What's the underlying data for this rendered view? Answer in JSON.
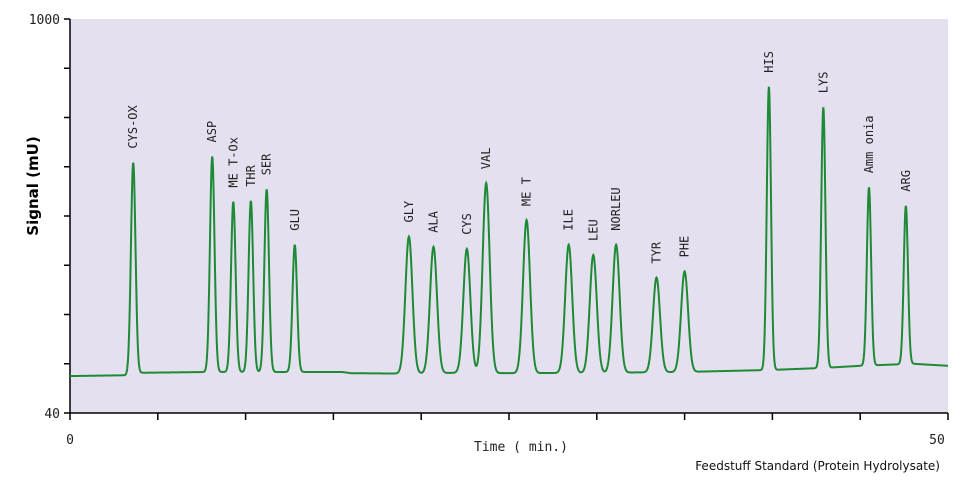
{
  "chart_data": {
    "type": "line",
    "title": "",
    "caption": "Feedstuff Standard (Protein Hydrolysate)",
    "xlabel": "Time ( min.)",
    "ylabel": "Signal (mU)",
    "xlim": [
      0,
      50
    ],
    "ylim": [
      40,
      1000
    ],
    "x_tick_labels": [
      "0",
      "50"
    ],
    "y_tick_labels": [
      "40",
      "1000"
    ],
    "grid": false,
    "background_color": "#e4e0ef",
    "line_color": "#1e8a35",
    "baseline": [
      [
        0,
        130
      ],
      [
        3.2,
        132
      ],
      [
        4.0,
        138
      ],
      [
        8,
        140
      ],
      [
        10,
        140
      ],
      [
        15.5,
        140
      ],
      [
        16,
        137
      ],
      [
        19,
        136
      ],
      [
        22,
        138
      ],
      [
        25,
        137
      ],
      [
        30,
        138
      ],
      [
        35,
        140
      ],
      [
        38,
        143
      ],
      [
        40,
        145
      ],
      [
        43,
        150
      ],
      [
        45,
        155
      ],
      [
        48,
        160
      ],
      [
        50,
        155
      ]
    ],
    "peaks": [
      {
        "name": "CYS-OX",
        "rt": 3.6,
        "height": 650
      },
      {
        "name": "ASP",
        "rt": 8.1,
        "height": 665
      },
      {
        "name": "ME T-Ox",
        "rt": 9.3,
        "height": 555
      },
      {
        "name": "THR",
        "rt": 10.3,
        "height": 557
      },
      {
        "name": "SER",
        "rt": 11.2,
        "height": 585
      },
      {
        "name": "GLU",
        "rt": 12.8,
        "height": 450
      },
      {
        "name": "GLY",
        "rt": 19.3,
        "height": 470
      },
      {
        "name": "ALA",
        "rt": 20.7,
        "height": 445
      },
      {
        "name": "CYS",
        "rt": 22.6,
        "height": 440
      },
      {
        "name": "VAL",
        "rt": 23.7,
        "height": 600
      },
      {
        "name": "ME T",
        "rt": 26.0,
        "height": 510
      },
      {
        "name": "ILE",
        "rt": 28.4,
        "height": 450
      },
      {
        "name": "LEU",
        "rt": 29.8,
        "height": 425
      },
      {
        "name": "NORLEU",
        "rt": 31.1,
        "height": 450
      },
      {
        "name": "TYR",
        "rt": 33.4,
        "height": 370
      },
      {
        "name": "PHE",
        "rt": 35.0,
        "height": 385
      },
      {
        "name": "HIS",
        "rt": 39.8,
        "height": 835
      },
      {
        "name": "LYS",
        "rt": 42.9,
        "height": 785
      },
      {
        "name": "Amm onia",
        "rt": 45.5,
        "height": 590
      },
      {
        "name": "ARG",
        "rt": 47.6,
        "height": 545
      }
    ]
  }
}
